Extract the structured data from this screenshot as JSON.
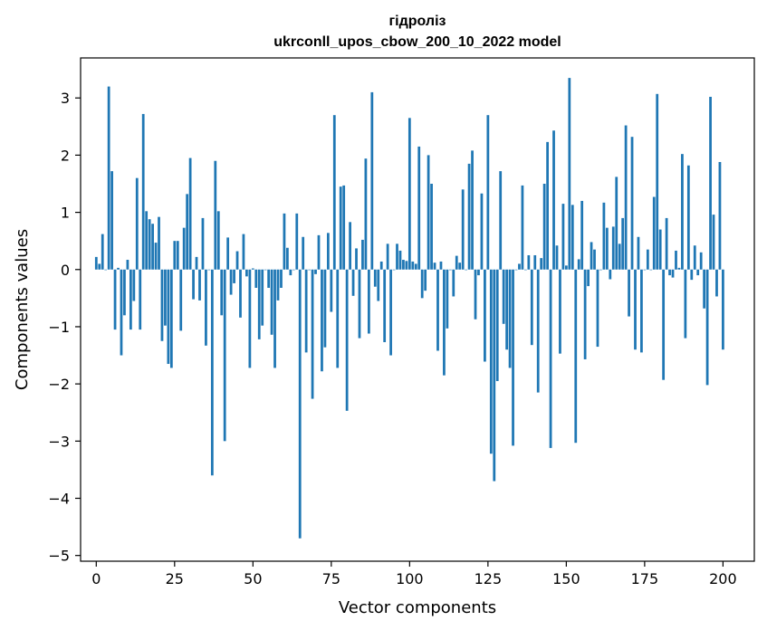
{
  "chart_data": {
    "type": "bar",
    "title": "гідроліз",
    "subtitle": "ukrconll_upos_cbow_200_10_2022 model",
    "xlabel": "Vector components",
    "ylabel": "Components values",
    "xlim": [
      -5,
      210
    ],
    "ylim": [
      -5.1,
      3.7
    ],
    "xticks": [
      0,
      25,
      50,
      75,
      100,
      125,
      150,
      175,
      200
    ],
    "yticks": [
      -5,
      -4,
      -3,
      -2,
      -1,
      0,
      1,
      2,
      3
    ],
    "ytick_labels": [
      "−5",
      "−4",
      "−3",
      "−2",
      "−1",
      "0",
      "1",
      "2",
      "3"
    ],
    "bar_color": "#1f77b4",
    "values": [
      0.22,
      0.1,
      0.62,
      0.0,
      3.2,
      1.72,
      -1.05,
      0.03,
      -1.5,
      -0.8,
      0.17,
      -1.05,
      -0.55,
      1.6,
      -1.05,
      2.72,
      1.02,
      0.88,
      0.8,
      0.47,
      0.92,
      -1.25,
      -0.98,
      -1.65,
      -1.72,
      0.5,
      0.5,
      -1.07,
      0.73,
      1.32,
      1.95,
      -0.52,
      0.22,
      -0.54,
      0.9,
      -1.33,
      0.0,
      -3.6,
      1.9,
      1.02,
      -0.8,
      -3.0,
      0.56,
      -0.44,
      -0.24,
      0.32,
      -0.84,
      0.62,
      -0.12,
      -1.72,
      0.02,
      -0.32,
      -1.22,
      -0.98,
      0.0,
      -0.32,
      -1.14,
      -1.72,
      -0.54,
      -0.32,
      0.98,
      0.38,
      -0.1,
      0.0,
      0.98,
      -4.7,
      0.57,
      -1.45,
      0.0,
      -2.26,
      -0.08,
      0.6,
      -1.78,
      -1.36,
      0.64,
      -0.74,
      2.7,
      -1.72,
      1.45,
      1.47,
      -2.47,
      0.83,
      -0.46,
      0.37,
      -1.2,
      0.52,
      1.94,
      -1.12,
      3.1,
      -0.3,
      -0.55,
      0.14,
      -1.27,
      0.45,
      -1.5,
      0.0,
      0.45,
      0.33,
      0.17,
      0.15,
      2.65,
      0.14,
      0.1,
      2.15,
      -0.5,
      -0.37,
      2.0,
      1.5,
      0.12,
      -1.42,
      0.14,
      -1.85,
      -1.03,
      0.0,
      -0.47,
      0.24,
      0.12,
      1.4,
      0.0,
      1.85,
      2.08,
      -0.87,
      -0.1,
      1.33,
      -1.61,
      2.7,
      -3.22,
      -3.7,
      -1.95,
      1.72,
      -0.95,
      -1.4,
      -1.72,
      -3.08,
      0.0,
      0.1,
      1.47,
      0.0,
      0.25,
      -1.32,
      0.25,
      -2.15,
      0.2,
      1.5,
      2.23,
      -3.12,
      2.43,
      0.42,
      -1.47,
      1.15,
      0.07,
      3.35,
      1.13,
      -3.03,
      0.18,
      1.2,
      -1.57,
      -0.29,
      0.48,
      0.35,
      -1.35,
      0.0,
      1.17,
      0.73,
      -0.17,
      0.75,
      1.62,
      0.45,
      0.9,
      2.52,
      -0.82,
      2.32,
      -1.4,
      0.57,
      -1.45,
      0.0,
      0.35,
      0.0,
      1.27,
      3.07,
      0.7,
      -1.93,
      0.9,
      -0.1,
      -0.14,
      0.33,
      0.03,
      2.02,
      -1.2,
      1.82,
      -0.18,
      0.42,
      -0.1,
      0.3,
      -0.68,
      -2.02,
      3.02,
      0.96,
      -0.47,
      1.88,
      -1.4
    ]
  }
}
